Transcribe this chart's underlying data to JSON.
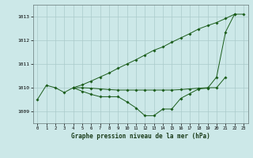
{
  "title": "Graphe pression niveau de la mer (hPa)",
  "bg_color": "#cce8e8",
  "grid_color": "#aacaca",
  "line_color": "#1a5c1a",
  "marker_color": "#1a5c1a",
  "xlim": [
    -0.5,
    23.5
  ],
  "ylim": [
    1008.5,
    1013.5
  ],
  "yticks": [
    1009,
    1010,
    1011,
    1012,
    1013
  ],
  "xticks": [
    0,
    1,
    2,
    3,
    4,
    5,
    6,
    7,
    8,
    9,
    10,
    11,
    12,
    13,
    14,
    15,
    16,
    17,
    18,
    19,
    20,
    21,
    22,
    23
  ],
  "series1": [
    1009.5,
    1010.1,
    1010.0,
    1009.8,
    1010.0,
    1009.85,
    1009.72,
    1009.62,
    1009.62,
    1009.62,
    1009.4,
    1009.15,
    1008.82,
    1008.82,
    1009.1,
    1009.1,
    1009.55,
    1009.75,
    1009.95,
    1009.98,
    1010.45,
    1012.35,
    1013.1,
    1013.1
  ],
  "series2": [
    null,
    null,
    null,
    null,
    1010.0,
    1010.0,
    1009.98,
    1009.95,
    1009.92,
    1009.9,
    1009.9,
    1009.9,
    1009.9,
    1009.9,
    1009.9,
    1009.9,
    1009.92,
    1009.95,
    1009.98,
    1010.0,
    1010.0,
    1010.45,
    null,
    null
  ],
  "series3": [
    null,
    null,
    null,
    null,
    1010.0,
    1010.12,
    1010.28,
    1010.45,
    1010.62,
    1010.82,
    1011.0,
    1011.18,
    1011.38,
    1011.58,
    1011.72,
    1011.92,
    1012.1,
    1012.28,
    1012.48,
    1012.62,
    1012.75,
    1012.92,
    1013.1,
    null
  ]
}
